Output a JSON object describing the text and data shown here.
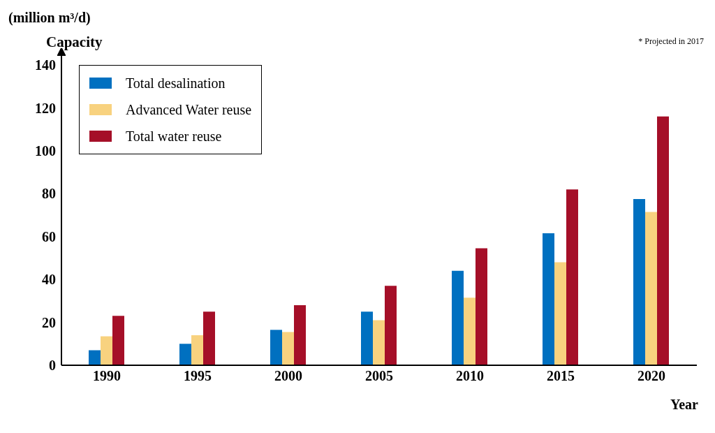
{
  "chart_data": {
    "type": "bar",
    "ylabel": "Capacity",
    "xlabel": "Year",
    "annotations": [
      "(million m³/d)",
      "* Projected in 2017"
    ],
    "categories": [
      "1990",
      "1995",
      "2000",
      "2005",
      "2010",
      "2015",
      "2020"
    ],
    "series": [
      {
        "name": "Total desalination",
        "color": "#0070c0",
        "values": [
          7,
          10,
          16.5,
          25,
          44,
          61.5,
          77.5
        ]
      },
      {
        "name": "Advanced Water reuse",
        "color": "#f8d27f",
        "values": [
          13.5,
          14,
          15.5,
          21,
          31.5,
          48,
          71.5
        ]
      },
      {
        "name": "Total water reuse",
        "color": "#a50f28",
        "values": [
          23,
          25,
          28,
          37,
          54.5,
          82,
          116
        ]
      }
    ],
    "ylim": [
      0,
      140
    ],
    "yticks": [
      0,
      20,
      40,
      60,
      80,
      100,
      120,
      140
    ],
    "grid": false,
    "legend": "top left"
  }
}
